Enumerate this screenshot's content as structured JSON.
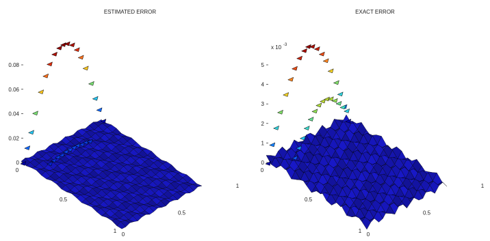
{
  "chart_data": [
    {
      "type": "surface",
      "title": "ESTIMATED ERROR",
      "xlabel": "",
      "ylabel": "",
      "zlabel": "",
      "x_ticks": [
        "0",
        "0.5",
        "1"
      ],
      "y_ticks": [
        "0",
        "0.5",
        "1"
      ],
      "z_ticks": [
        "0",
        "0.02",
        "0.04",
        "0.06",
        "0.08"
      ],
      "z_lim": [
        0,
        0.08
      ],
      "z_exponent_label": "",
      "surface": {
        "color": "#1a1aa8",
        "edge_color": "#000000",
        "approx_level": 0.002
      },
      "boundary_markers": [
        {
          "s": 0.0,
          "value": 0.0
        },
        {
          "s": 0.05,
          "value": 0.011
        },
        {
          "s": 0.1,
          "value": 0.022
        },
        {
          "s": 0.15,
          "value": 0.036
        },
        {
          "s": 0.22,
          "value": 0.051
        },
        {
          "s": 0.28,
          "value": 0.062
        },
        {
          "s": 0.33,
          "value": 0.07
        },
        {
          "s": 0.39,
          "value": 0.076
        },
        {
          "s": 0.45,
          "value": 0.079
        },
        {
          "s": 0.5,
          "value": 0.08
        },
        {
          "s": 0.55,
          "value": 0.079
        },
        {
          "s": 0.61,
          "value": 0.076
        },
        {
          "s": 0.67,
          "value": 0.07
        },
        {
          "s": 0.72,
          "value": 0.062
        },
        {
          "s": 0.78,
          "value": 0.051
        },
        {
          "s": 0.85,
          "value": 0.036
        },
        {
          "s": 0.9,
          "value": 0.022
        },
        {
          "s": 0.95,
          "value": 0.011
        },
        {
          "s": 1.0,
          "value": 0.0
        }
      ],
      "interior_markers": [
        {
          "s": 0.05,
          "value": 0.004
        },
        {
          "s": 0.1,
          "value": 0.005
        },
        {
          "s": 0.15,
          "value": 0.006
        },
        {
          "s": 0.2,
          "value": 0.006
        },
        {
          "s": 0.25,
          "value": 0.007
        },
        {
          "s": 0.3,
          "value": 0.007
        },
        {
          "s": 0.35,
          "value": 0.007
        },
        {
          "s": 0.4,
          "value": 0.007
        },
        {
          "s": 0.45,
          "value": 0.006
        },
        {
          "s": 0.5,
          "value": 0.006
        },
        {
          "s": 0.55,
          "value": 0.005
        }
      ],
      "colormap": [
        "#0000aa",
        "#1060ff",
        "#20c0ff",
        "#40e0c0",
        "#a0e040",
        "#ffd020",
        "#ff8020",
        "#e03010",
        "#900000"
      ]
    },
    {
      "type": "surface",
      "title": "EXACT ERROR",
      "xlabel": "",
      "ylabel": "",
      "zlabel": "",
      "x_ticks": [
        "0",
        "0.5",
        "1"
      ],
      "y_ticks": [
        "0",
        "0.5",
        "1"
      ],
      "z_ticks": [
        "0",
        "1",
        "2",
        "3",
        "4",
        "5"
      ],
      "z_lim": [
        0,
        5
      ],
      "z_exponent_label": "x 10",
      "z_exponent_power": "-3",
      "surface": {
        "color": "#1a1aa8",
        "edge_color": "#000000",
        "approx_level": 0.4
      },
      "boundary_markers": [
        {
          "s": 0.0,
          "value": 0.0
        },
        {
          "s": 0.05,
          "value": 0.85
        },
        {
          "s": 0.1,
          "value": 1.6
        },
        {
          "s": 0.15,
          "value": 2.3
        },
        {
          "s": 0.22,
          "value": 3.05
        },
        {
          "s": 0.28,
          "value": 3.7
        },
        {
          "s": 0.33,
          "value": 4.15
        },
        {
          "s": 0.39,
          "value": 4.55
        },
        {
          "s": 0.45,
          "value": 4.8
        },
        {
          "s": 0.5,
          "value": 4.9
        },
        {
          "s": 0.55,
          "value": 4.8
        },
        {
          "s": 0.61,
          "value": 4.55
        },
        {
          "s": 0.67,
          "value": 4.15
        },
        {
          "s": 0.72,
          "value": 3.7
        },
        {
          "s": 0.78,
          "value": 3.05
        },
        {
          "s": 0.85,
          "value": 2.3
        },
        {
          "s": 0.9,
          "value": 1.6
        },
        {
          "s": 0.95,
          "value": 0.85
        },
        {
          "s": 1.0,
          "value": 0.0
        }
      ],
      "interior_markers": [
        {
          "s": 0.05,
          "value": 0.55
        },
        {
          "s": 0.1,
          "value": 0.95
        },
        {
          "s": 0.15,
          "value": 1.35
        },
        {
          "s": 0.2,
          "value": 1.75
        },
        {
          "s": 0.25,
          "value": 2.1
        },
        {
          "s": 0.3,
          "value": 2.4
        },
        {
          "s": 0.35,
          "value": 2.6
        },
        {
          "s": 0.4,
          "value": 2.7
        },
        {
          "s": 0.45,
          "value": 2.7
        },
        {
          "s": 0.5,
          "value": 2.6
        },
        {
          "s": 0.55,
          "value": 2.4
        },
        {
          "s": 0.6,
          "value": 2.15
        },
        {
          "s": 0.65,
          "value": 1.85
        },
        {
          "s": 0.7,
          "value": 1.55
        }
      ],
      "colormap": [
        "#0000aa",
        "#1060ff",
        "#20c0ff",
        "#40e0c0",
        "#a0e040",
        "#ffd020",
        "#ff8020",
        "#e03010",
        "#900000"
      ]
    }
  ]
}
